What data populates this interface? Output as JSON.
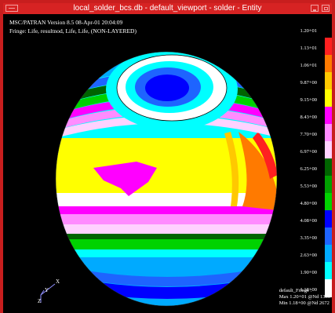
{
  "window": {
    "title": "local_solder_bcs.db - default_viewport - solder - Entity",
    "frame_color": "#d72323"
  },
  "viewport": {
    "header_line1": "MSC/PATRAN Version 8.5 08-Apr-01 20:04:09",
    "header_line2": "Fringe: Life, resultnod, Life, Life, (NON-LAYERED)"
  },
  "legend": {
    "items": [
      {
        "label": "1.20+01",
        "color": "#000000"
      },
      {
        "label": "1.13+01",
        "color": "#ff2020"
      },
      {
        "label": "1.06+01",
        "color": "#ff7a00"
      },
      {
        "label": "9.87+00",
        "color": "#ffc800"
      },
      {
        "label": "9.15+00",
        "color": "#ffff00"
      },
      {
        "label": "8.43+00",
        "color": "#ff00ff"
      },
      {
        "label": "7.70+00",
        "color": "#ff8cff"
      },
      {
        "label": "6.97+00",
        "color": "#ffd2ff"
      },
      {
        "label": "6.25+00",
        "color": "#006400"
      },
      {
        "label": "5.53+00",
        "color": "#00a000"
      },
      {
        "label": "4.80+00",
        "color": "#00d200"
      },
      {
        "label": "4.08+00",
        "color": "#0000ff"
      },
      {
        "label": "3.35+00",
        "color": "#1e64ff"
      },
      {
        "label": "2.63+00",
        "color": "#00aaff"
      },
      {
        "label": "1.90+00",
        "color": "#00ffff"
      },
      {
        "label": "1.18+00",
        "color": "#ffffff"
      }
    ]
  },
  "footer": {
    "line1": "default_Fringe :",
    "line2": "Max 1.20+01 @Nd 1335",
    "line3": "Min 1.18+00 @Nd 2672"
  },
  "triad": {
    "x_label": "X",
    "y_label": "Y",
    "z_label": "Z"
  }
}
